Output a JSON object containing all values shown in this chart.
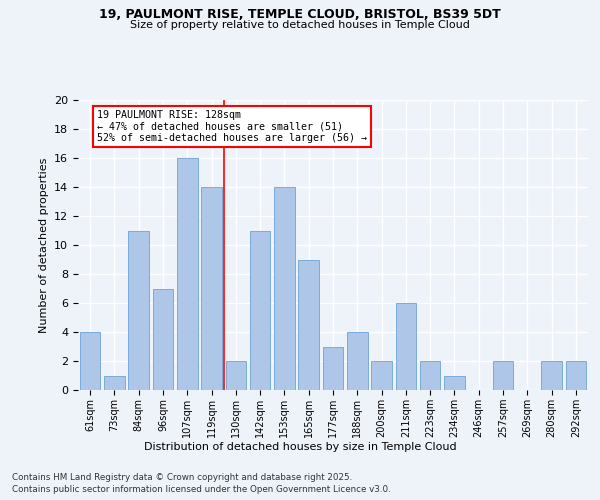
{
  "title": "19, PAULMONT RISE, TEMPLE CLOUD, BRISTOL, BS39 5DT",
  "subtitle": "Size of property relative to detached houses in Temple Cloud",
  "xlabel": "Distribution of detached houses by size in Temple Cloud",
  "ylabel": "Number of detached properties",
  "categories": [
    "61sqm",
    "73sqm",
    "84sqm",
    "96sqm",
    "107sqm",
    "119sqm",
    "130sqm",
    "142sqm",
    "153sqm",
    "165sqm",
    "177sqm",
    "188sqm",
    "200sqm",
    "211sqm",
    "223sqm",
    "234sqm",
    "246sqm",
    "257sqm",
    "269sqm",
    "280sqm",
    "292sqm"
  ],
  "values": [
    4,
    1,
    11,
    7,
    16,
    14,
    2,
    11,
    14,
    9,
    3,
    4,
    2,
    6,
    2,
    1,
    0,
    2,
    0,
    2,
    2
  ],
  "bar_color": "#aec6e8",
  "bar_edgecolor": "#7aabda",
  "reference_line_x": 5.5,
  "reference_label": "19 PAULMONT RISE: 128sqm",
  "annotation_line1": "← 47% of detached houses are smaller (51)",
  "annotation_line2": "52% of semi-detached houses are larger (56) →",
  "ylim": [
    0,
    20
  ],
  "yticks": [
    0,
    2,
    4,
    6,
    8,
    10,
    12,
    14,
    16,
    18,
    20
  ],
  "background_color": "#eef2f9",
  "grid_color": "#ffffff",
  "footer1": "Contains HM Land Registry data © Crown copyright and database right 2025.",
  "footer2": "Contains public sector information licensed under the Open Government Licence v3.0."
}
